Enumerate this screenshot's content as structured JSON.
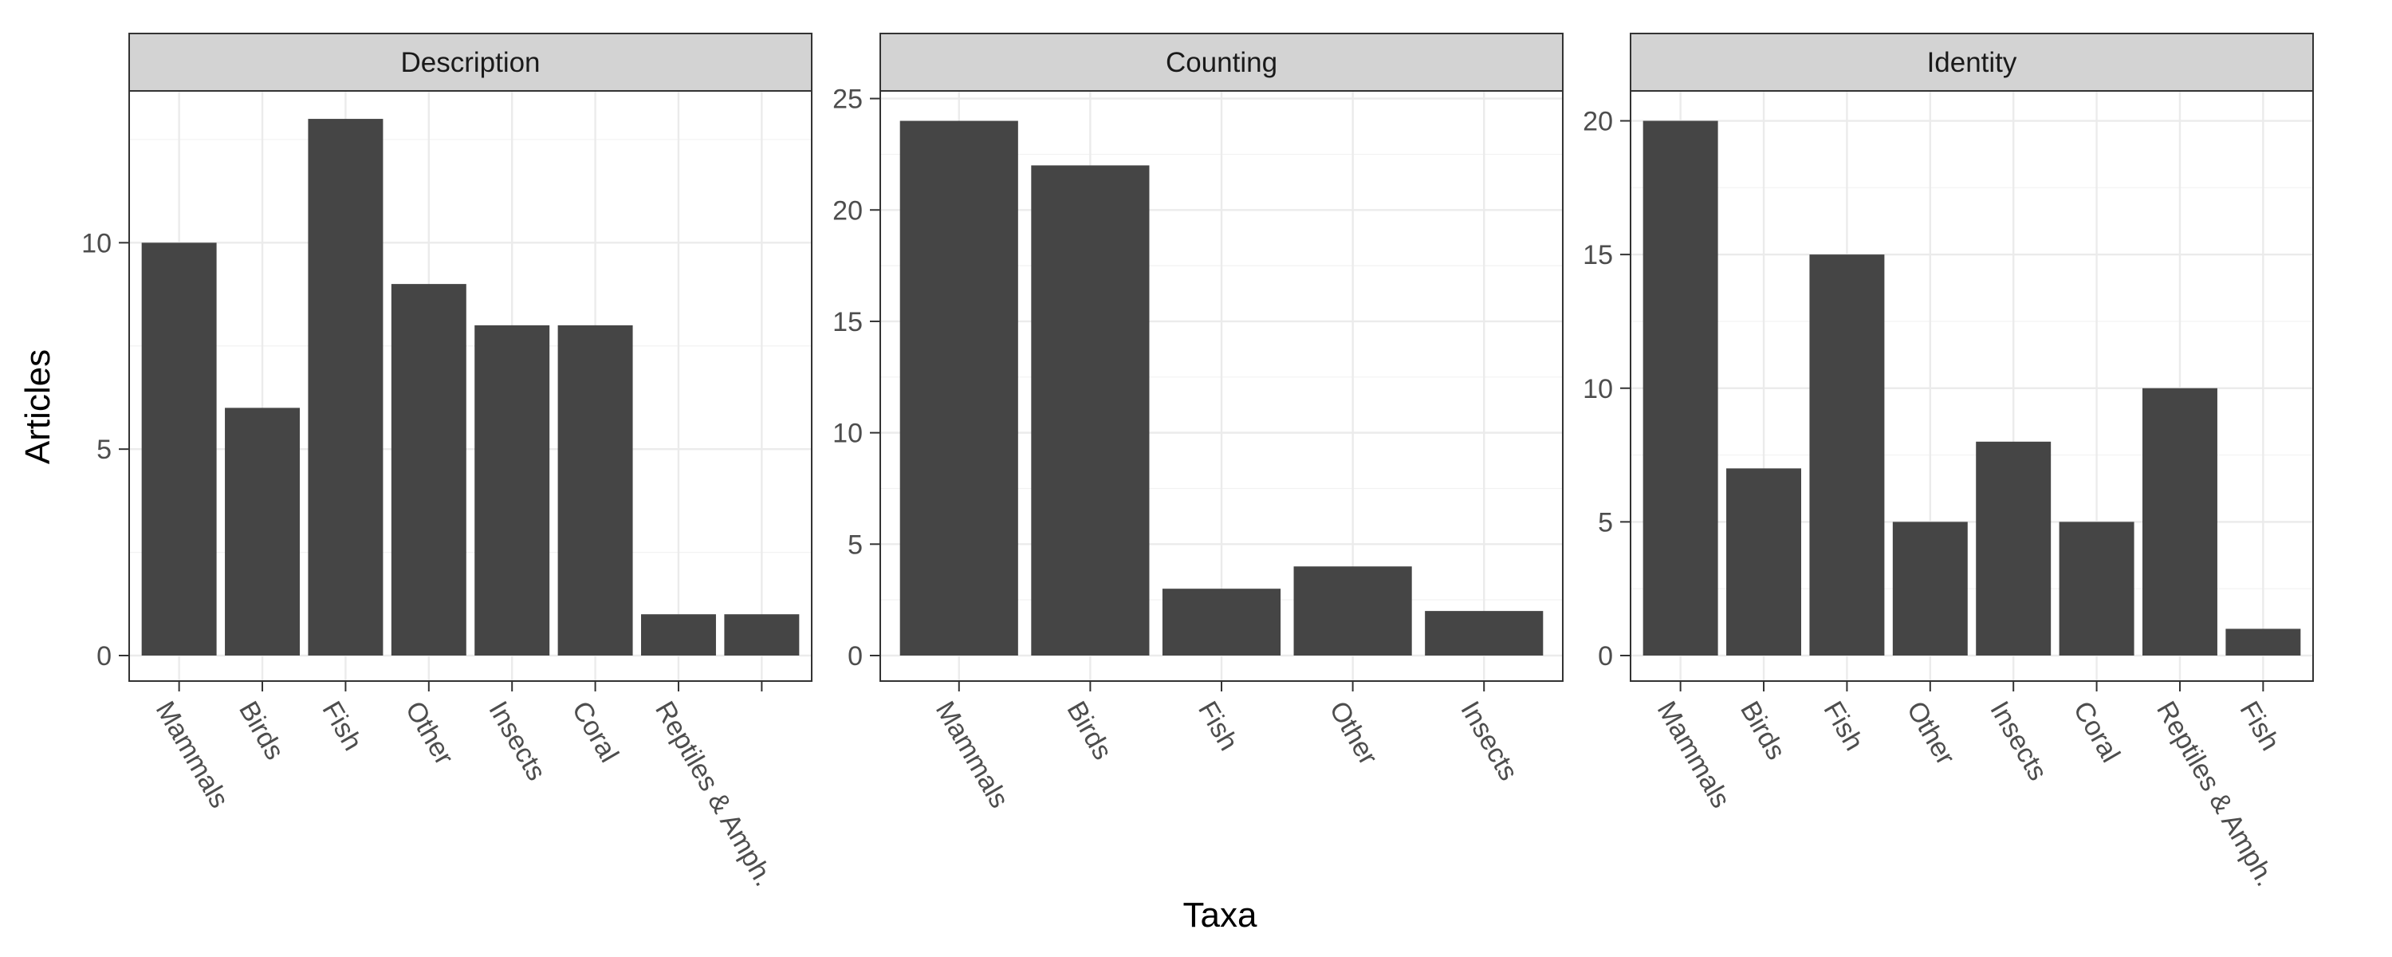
{
  "chart_data": {
    "type": "bar",
    "xlabel": "Taxa",
    "ylabel": "Articles",
    "bar_color": "#454545",
    "strip_color": "#d3d3d3",
    "grid": true,
    "panels": [
      {
        "title": "Description",
        "categories": [
          "Mammals",
          "Birds",
          "Fish",
          "Other",
          "Insects",
          "Coral",
          "Reptiles & Amph.",
          ""
        ],
        "values": [
          10,
          6,
          13,
          9,
          8,
          8,
          1,
          1
        ],
        "ylim": [
          0,
          13.6
        ],
        "yticks": [
          0,
          5,
          10
        ]
      },
      {
        "title": "Counting",
        "categories": [
          "Mammals",
          "Birds",
          "Fish",
          "Other",
          "Insects"
        ],
        "values": [
          24,
          22,
          3,
          4,
          2
        ],
        "ylim": [
          0,
          25.2
        ],
        "yticks": [
          0,
          5,
          10,
          15,
          20,
          25
        ]
      },
      {
        "title": "Identity",
        "categories": [
          "Mammals",
          "Birds",
          "Fish",
          "Other",
          "Insects",
          "Coral",
          "Reptiles & Amph.",
          "Fish"
        ],
        "values": [
          20,
          7,
          15,
          5,
          8,
          5,
          10,
          1
        ],
        "ylim": [
          0,
          21
        ],
        "yticks": [
          0,
          5,
          10,
          15,
          20
        ]
      }
    ]
  }
}
